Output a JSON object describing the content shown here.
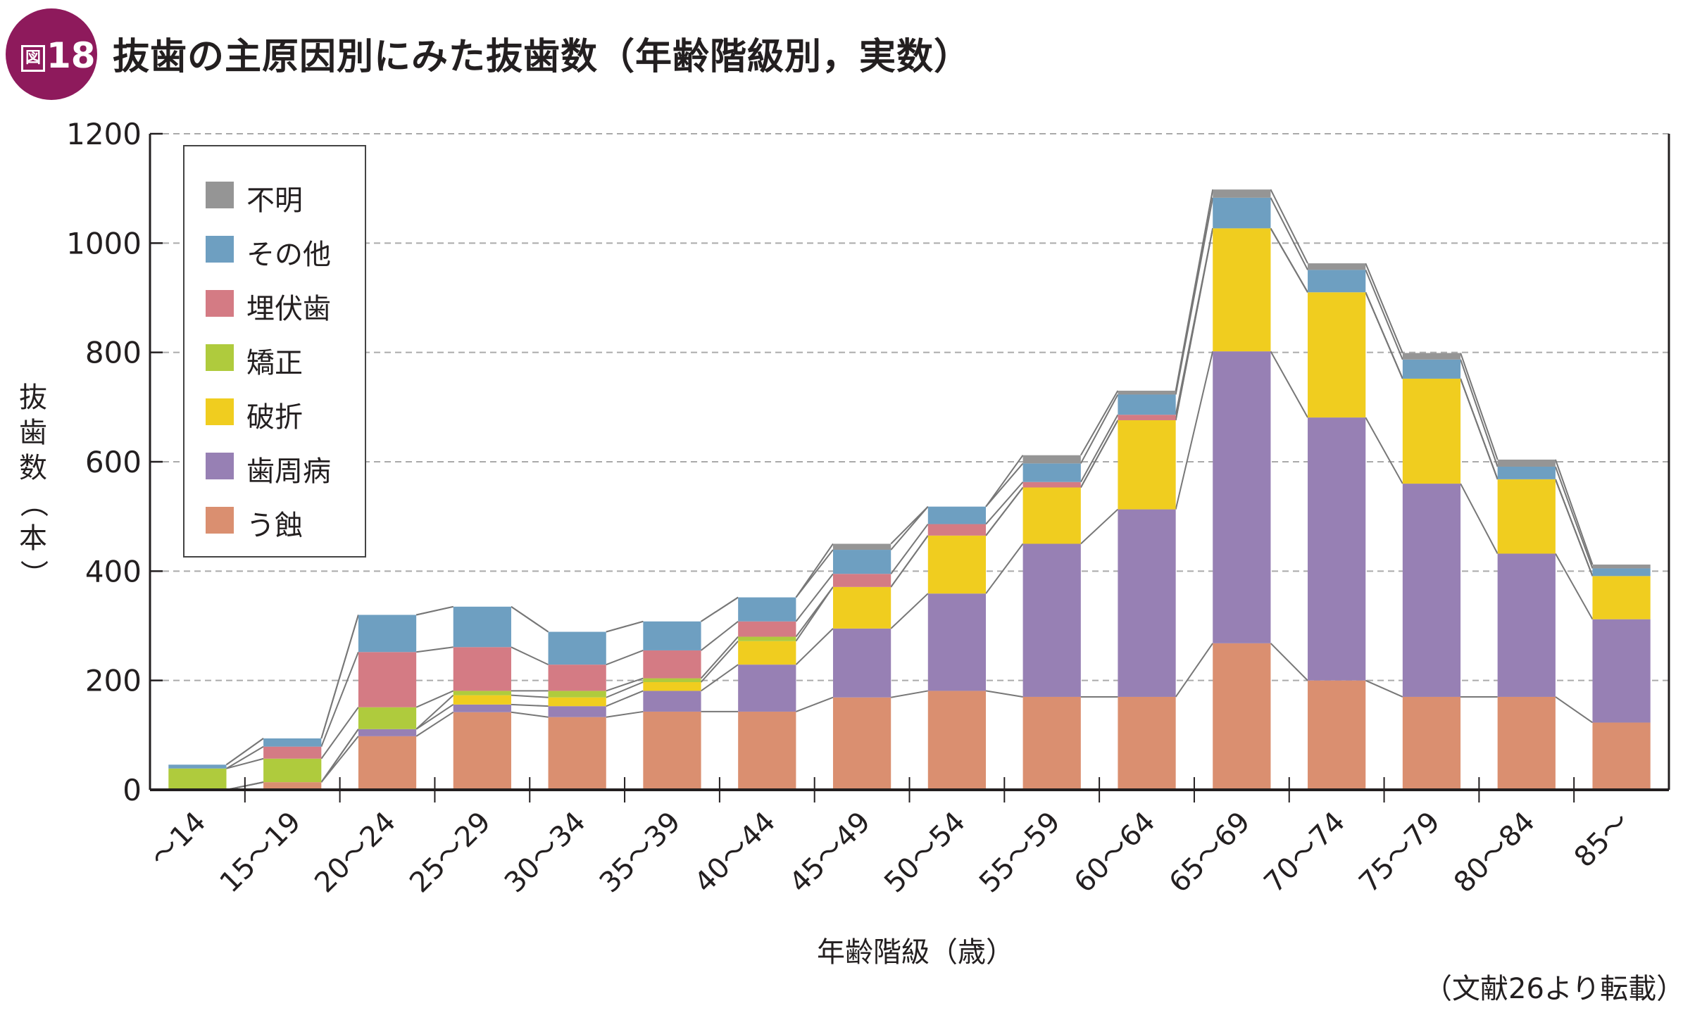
{
  "figure": {
    "badge_prefix": "図",
    "badge_number": "18",
    "title": "抜歯の主原因別にみた抜歯数（年齢階級別，実数）",
    "source_note": "（文献26より転載）",
    "badge_color": "#8e1a5c"
  },
  "chart_data": {
    "type": "bar",
    "stacked": true,
    "title": "抜歯の主原因別にみた抜歯数（年齢階級別，実数）",
    "xlabel": "年齢階級（歳）",
    "ylabel": "抜歯数（本）",
    "ylabel_chars": [
      "抜",
      "歯",
      "数",
      "（",
      "本",
      "）"
    ],
    "ylim": [
      0,
      1200
    ],
    "yticks": [
      0,
      200,
      400,
      600,
      800,
      1000,
      1200
    ],
    "grid": "horizontal-dashed",
    "legend_position": "top-left",
    "connector_lines": true,
    "categories": [
      "〜14",
      "15〜19",
      "20〜24",
      "25〜29",
      "30〜34",
      "35〜39",
      "40〜44",
      "45〜49",
      "50〜54",
      "55〜59",
      "60〜64",
      "65〜69",
      "70〜74",
      "75〜79",
      "80〜84",
      "85〜"
    ],
    "series": [
      {
        "name": "う蝕",
        "color": "#da8f70",
        "values": [
          0,
          14,
          98,
          142,
          133,
          143,
          143,
          169,
          181,
          170,
          170,
          268,
          200,
          170,
          170,
          123
        ]
      },
      {
        "name": "歯周病",
        "color": "#9780b4",
        "values": [
          0,
          0,
          13,
          14,
          20,
          38,
          86,
          126,
          178,
          280,
          343,
          534,
          481,
          390,
          262,
          189
        ]
      },
      {
        "name": "破折",
        "color": "#f0cd1f",
        "values": [
          0,
          0,
          0,
          17,
          16,
          16,
          43,
          76,
          106,
          103,
          163,
          225,
          229,
          192,
          136,
          79
        ]
      },
      {
        "name": "矯正",
        "color": "#afcb3d",
        "values": [
          39,
          43,
          40,
          8,
          12,
          7,
          8,
          0,
          0,
          0,
          0,
          0,
          0,
          0,
          0,
          0
        ]
      },
      {
        "name": "埋伏歯",
        "color": "#d47b84",
        "values": [
          0,
          22,
          101,
          80,
          48,
          51,
          28,
          24,
          21,
          10,
          10,
          0,
          0,
          0,
          0,
          0
        ]
      },
      {
        "name": "その他",
        "color": "#6e9fc1",
        "values": [
          7,
          15,
          68,
          74,
          60,
          53,
          44,
          44,
          32,
          34,
          37,
          56,
          41,
          35,
          23,
          14
        ]
      },
      {
        "name": "不明",
        "color": "#959595",
        "values": [
          0,
          0,
          0,
          0,
          0,
          0,
          0,
          11,
          0,
          15,
          7,
          15,
          12,
          12,
          13,
          7
        ]
      }
    ],
    "legend_order": [
      "不明",
      "その他",
      "埋伏歯",
      "矯正",
      "破折",
      "歯周病",
      "う蝕"
    ]
  }
}
